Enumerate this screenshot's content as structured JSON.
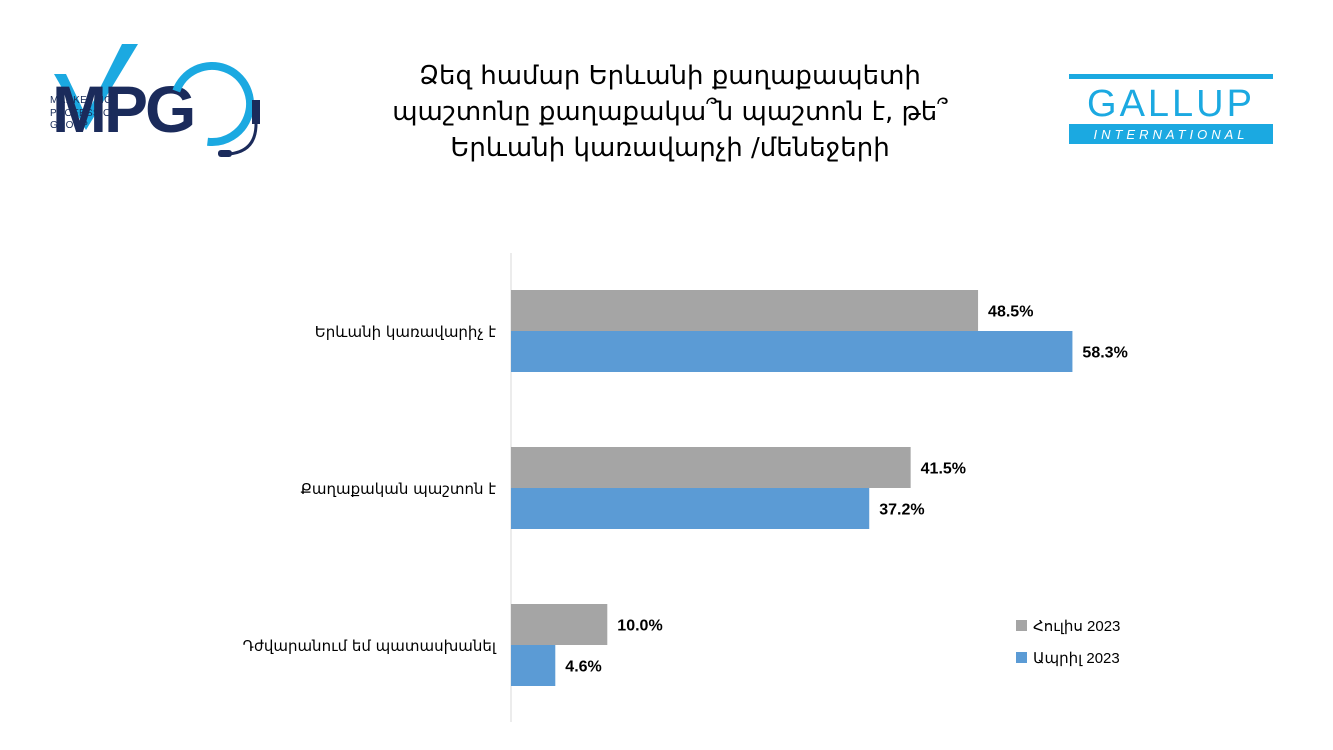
{
  "title_lines": [
    "Ձեզ համար Երևանի քաղաքապետի",
    "պաշտոնը քաղաքակա՞ն պաշտոն է, թե՞",
    "Երևանի կառավարչի /մենեջերի"
  ],
  "logos": {
    "mpg": {
      "mark": "MPG",
      "sub_lines": [
        "MARKETING",
        "PROFESSIONAL",
        "GROUP"
      ],
      "colors": {
        "navy": "#1b2b5b",
        "cyan": "#1ba9e1"
      }
    },
    "gallup": {
      "mark": "GALLUP",
      "sub": "INTERNATIONAL",
      "colors": {
        "cyan": "#1ba9e1"
      }
    }
  },
  "chart_data": {
    "type": "bar",
    "orientation": "horizontal",
    "categories": [
      "Երևանի կառավարիչ է",
      "Քաղաքական պաշտոն է",
      "Դժվարանում եմ պատասխանել"
    ],
    "series": [
      {
        "name": "Հուլիս 2023",
        "color": "#a5a5a5",
        "values": [
          48.5,
          41.5,
          10.0
        ],
        "labels": [
          "48.5%",
          "41.5%",
          "10.0%"
        ]
      },
      {
        "name": "Ապրիլ 2023",
        "color": "#5b9bd5",
        "values": [
          58.3,
          37.2,
          4.6
        ],
        "labels": [
          "58.3%",
          "37.2%",
          "4.6%"
        ]
      }
    ],
    "xlim": [
      0,
      100
    ],
    "grid": false,
    "legend_position": "bottom-right",
    "axis_color": "#d9d9d9"
  }
}
